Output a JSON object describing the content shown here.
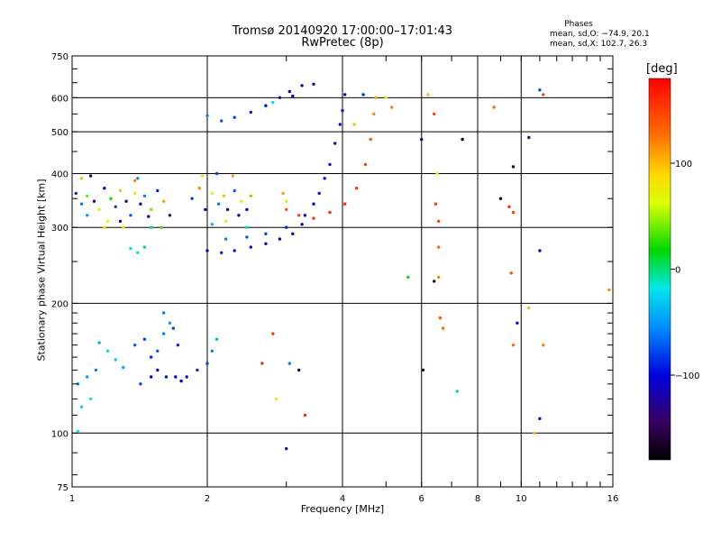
{
  "header": {
    "title_line1": "Tromsø 20140920 17:00:00–17:01:43",
    "title_line2": "RwPretec (8p)"
  },
  "phase_info": {
    "title": "Phases",
    "line_o": "mean, sd,O: −74.9, 20.1",
    "line_x": "mean, sd,X: 102.7, 26.3"
  },
  "colorbar": {
    "unit_label": "[deg]",
    "ticks": [
      {
        "value": 100,
        "label": "100"
      },
      {
        "value": 0,
        "label": "0"
      },
      {
        "value": -100,
        "label": "−100"
      }
    ],
    "range": [
      -180,
      180
    ],
    "colormap": "rainbow-black-to-red"
  },
  "chart_data": {
    "type": "scatter",
    "xlabel": "Frequency [MHz]",
    "ylabel": "Stationary phase Virtual Height [km]",
    "xscale": "log",
    "yscale": "log",
    "xlim": [
      1,
      16
    ],
    "ylim": [
      75,
      750
    ],
    "xticks": [
      {
        "v": 1,
        "label": "1"
      },
      {
        "v": 2,
        "label": "2"
      },
      {
        "v": 4,
        "label": "4"
      },
      {
        "v": 6,
        "label": "6"
      },
      {
        "v": 8,
        "label": "8"
      },
      {
        "v": 10,
        "label": "10"
      },
      {
        "v": 16,
        "label": "16"
      }
    ],
    "yticks": [
      {
        "v": 75,
        "label": "75"
      },
      {
        "v": 100,
        "label": "100"
      },
      {
        "v": 200,
        "label": "200"
      },
      {
        "v": 300,
        "label": "300"
      },
      {
        "v": 400,
        "label": "400"
      },
      {
        "v": 500,
        "label": "500"
      },
      {
        "v": 600,
        "label": "600"
      },
      {
        "v": 750,
        "label": "750"
      }
    ],
    "grid": true,
    "points": [
      [
        1.03,
        130,
        -60
      ],
      [
        1.08,
        135,
        -50
      ],
      [
        1.13,
        140,
        -60
      ],
      [
        1.05,
        115,
        -30
      ],
      [
        1.1,
        120,
        -20
      ],
      [
        1.03,
        101,
        -20
      ],
      [
        1.25,
        148,
        -30
      ],
      [
        1.3,
        142,
        -45
      ],
      [
        1.38,
        160,
        -70
      ],
      [
        1.45,
        165,
        -80
      ],
      [
        1.5,
        150,
        -90
      ],
      [
        1.55,
        155,
        -75
      ],
      [
        1.6,
        170,
        -60
      ],
      [
        1.68,
        175,
        -80
      ],
      [
        1.72,
        160,
        -90
      ],
      [
        1.65,
        180,
        -50
      ],
      [
        1.55,
        140,
        -100
      ],
      [
        1.62,
        135,
        -95
      ],
      [
        1.5,
        135,
        -105
      ],
      [
        1.7,
        135,
        -100
      ],
      [
        1.75,
        132,
        -110
      ],
      [
        1.8,
        135,
        -100
      ],
      [
        1.9,
        140,
        -90
      ],
      [
        2.0,
        145,
        -80
      ],
      [
        2.05,
        155,
        -60
      ],
      [
        2.1,
        165,
        -40
      ],
      [
        1.42,
        130,
        -80
      ],
      [
        1.6,
        190,
        -60
      ],
      [
        1.2,
        155,
        -20
      ],
      [
        1.15,
        162,
        -40
      ],
      [
        1.02,
        360,
        -90
      ],
      [
        1.05,
        340,
        -60
      ],
      [
        1.08,
        355,
        40
      ],
      [
        1.12,
        345,
        -120
      ],
      [
        1.15,
        330,
        60
      ],
      [
        1.18,
        370,
        -100
      ],
      [
        1.22,
        350,
        20
      ],
      [
        1.25,
        335,
        -80
      ],
      [
        1.28,
        365,
        100
      ],
      [
        1.32,
        345,
        -140
      ],
      [
        1.35,
        320,
        -70
      ],
      [
        1.38,
        360,
        80
      ],
      [
        1.42,
        340,
        -110
      ],
      [
        1.45,
        355,
        -60
      ],
      [
        1.5,
        330,
        40
      ],
      [
        1.55,
        365,
        -90
      ],
      [
        1.6,
        345,
        110
      ],
      [
        1.65,
        320,
        -120
      ],
      [
        1.05,
        390,
        100
      ],
      [
        1.1,
        395,
        -130
      ],
      [
        1.2,
        310,
        60
      ],
      [
        1.3,
        300,
        80
      ],
      [
        1.4,
        390,
        -60
      ],
      [
        1.5,
        300,
        0
      ],
      [
        1.08,
        320,
        -50
      ],
      [
        1.18,
        300,
        90
      ],
      [
        1.28,
        310,
        -140
      ],
      [
        1.38,
        385,
        120
      ],
      [
        1.48,
        318,
        -100
      ],
      [
        1.58,
        300,
        30
      ],
      [
        1.35,
        268,
        -20
      ],
      [
        1.4,
        262,
        -10
      ],
      [
        1.45,
        270,
        0
      ],
      [
        1.85,
        350,
        -80
      ],
      [
        1.92,
        370,
        120
      ],
      [
        1.98,
        330,
        -110
      ],
      [
        2.05,
        360,
        60
      ],
      [
        2.12,
        340,
        -60
      ],
      [
        2.18,
        355,
        100
      ],
      [
        2.22,
        330,
        -130
      ],
      [
        2.3,
        365,
        -70
      ],
      [
        2.38,
        345,
        80
      ],
      [
        2.45,
        330,
        -100
      ],
      [
        2.5,
        355,
        40
      ],
      [
        2.35,
        320,
        -120
      ],
      [
        1.95,
        395,
        90
      ],
      [
        2.1,
        400,
        -80
      ],
      [
        2.2,
        310,
        70
      ],
      [
        2.05,
        305,
        -40
      ],
      [
        2.28,
        395,
        110
      ],
      [
        2.45,
        300,
        -10
      ],
      [
        2.0,
        265,
        -100
      ],
      [
        2.15,
        262,
        -90
      ],
      [
        2.3,
        265,
        -95
      ],
      [
        2.5,
        270,
        -100
      ],
      [
        2.7,
        275,
        -105
      ],
      [
        2.9,
        282,
        -110
      ],
      [
        3.1,
        290,
        -115
      ],
      [
        3.25,
        305,
        -110
      ],
      [
        3.45,
        340,
        -105
      ],
      [
        3.65,
        390,
        -100
      ],
      [
        3.85,
        470,
        -95
      ],
      [
        4.0,
        560,
        -90
      ],
      [
        2.2,
        282,
        -60
      ],
      [
        2.45,
        285,
        -70
      ],
      [
        2.7,
        290,
        -80
      ],
      [
        3.0,
        300,
        -90
      ],
      [
        3.3,
        320,
        -100
      ],
      [
        3.55,
        360,
        -105
      ],
      [
        3.75,
        420,
        -100
      ],
      [
        3.95,
        520,
        -95
      ],
      [
        4.05,
        610,
        -110
      ],
      [
        2.0,
        545,
        -60
      ],
      [
        2.15,
        530,
        -70
      ],
      [
        2.3,
        540,
        -80
      ],
      [
        2.5,
        555,
        -90
      ],
      [
        2.7,
        575,
        -100
      ],
      [
        2.9,
        600,
        -110
      ],
      [
        3.05,
        620,
        -115
      ],
      [
        3.25,
        640,
        -120
      ],
      [
        3.45,
        645,
        -110
      ],
      [
        3.1,
        605,
        -100
      ],
      [
        2.8,
        585,
        -20
      ],
      [
        3.0,
        330,
        140
      ],
      [
        3.2,
        320,
        150
      ],
      [
        3.45,
        315,
        155
      ],
      [
        3.75,
        325,
        160
      ],
      [
        4.05,
        340,
        160
      ],
      [
        4.3,
        370,
        155
      ],
      [
        4.5,
        420,
        150
      ],
      [
        4.62,
        480,
        140
      ],
      [
        4.7,
        550,
        120
      ],
      [
        4.75,
        600,
        110
      ],
      [
        4.25,
        520,
        100
      ],
      [
        4.45,
        610,
        -90
      ],
      [
        3.0,
        345,
        80
      ],
      [
        2.95,
        360,
        110
      ],
      [
        5.15,
        570,
        120
      ],
      [
        5.0,
        600,
        60
      ],
      [
        2.65,
        145,
        160
      ],
      [
        2.85,
        120,
        80
      ],
      [
        3.05,
        145,
        -60
      ],
      [
        3.2,
        140,
        -160
      ],
      [
        3.3,
        110,
        160
      ],
      [
        3.0,
        92,
        -120
      ],
      [
        2.8,
        170,
        150
      ],
      [
        5.6,
        230,
        20
      ],
      [
        6.0,
        480,
        -120
      ],
      [
        6.05,
        140,
        -150
      ],
      [
        6.2,
        610,
        100
      ],
      [
        6.4,
        550,
        150
      ],
      [
        6.55,
        230,
        120
      ],
      [
        6.6,
        185,
        140
      ],
      [
        6.45,
        340,
        150
      ],
      [
        6.55,
        310,
        150
      ],
      [
        6.5,
        400,
        70
      ],
      [
        6.7,
        175,
        130
      ],
      [
        6.55,
        270,
        130
      ],
      [
        6.4,
        225,
        -170
      ],
      [
        7.2,
        125,
        0
      ],
      [
        7.4,
        480,
        -170
      ],
      [
        8.7,
        570,
        130
      ],
      [
        9.0,
        350,
        -170
      ],
      [
        9.4,
        335,
        160
      ],
      [
        9.6,
        415,
        -170
      ],
      [
        9.5,
        235,
        140
      ],
      [
        9.6,
        160,
        130
      ],
      [
        9.8,
        180,
        -110
      ],
      [
        10.4,
        195,
        100
      ],
      [
        10.7,
        100,
        100
      ],
      [
        11.0,
        625,
        -80
      ],
      [
        11.2,
        610,
        150
      ],
      [
        11.0,
        265,
        -110
      ],
      [
        11.2,
        160,
        120
      ],
      [
        11.0,
        108,
        -110
      ],
      [
        10.4,
        485,
        -110
      ],
      [
        15.7,
        215,
        120
      ],
      [
        9.6,
        325,
        150
      ]
    ]
  }
}
